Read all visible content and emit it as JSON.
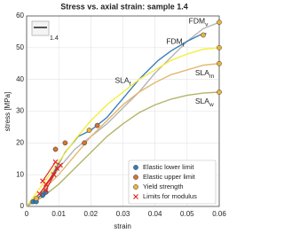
{
  "chart_data": {
    "type": "line",
    "title": "Stress vs. axial strain: sample 1.4",
    "xlabel": "strain",
    "ylabel": "stress [MPa]",
    "inset_label": "1.4",
    "xlim": [
      0,
      0.06
    ],
    "xticks": [
      0,
      0.01,
      0.02,
      0.03,
      0.04,
      0.05,
      0.06
    ],
    "ylim": [
      0,
      60
    ],
    "yticks": [
      0,
      10,
      20,
      30,
      40,
      50,
      60
    ],
    "grid": true,
    "legend": "lower right",
    "series": [
      {
        "name": {
          "text": "FDM",
          "sub": "v"
        },
        "color": "#b5b5b5",
        "x": [
          0,
          0.005,
          0.01,
          0.015,
          0.02,
          0.025,
          0.03,
          0.035,
          0.04,
          0.045,
          0.05,
          0.055,
          0.06
        ],
        "values": [
          0,
          4,
          12,
          18,
          22,
          26,
          31,
          36,
          42,
          47,
          52,
          56,
          58
        ]
      },
      {
        "name": {
          "text": "FDM",
          "sub": "t"
        },
        "color": "#3a7fb8",
        "x": [
          0,
          0.004,
          0.008,
          0.012,
          0.016,
          0.02,
          0.025,
          0.03,
          0.035,
          0.038,
          0.041,
          0.045,
          0.05,
          0.054,
          0.056
        ],
        "values": [
          0,
          3,
          10,
          17,
          22,
          24,
          28,
          34,
          40,
          43,
          46,
          49,
          52,
          54,
          54.5
        ]
      },
      {
        "name": {
          "text": "SLA",
          "sub": "f"
        },
        "color": "#f3ef3c",
        "x": [
          0,
          0.005,
          0.01,
          0.015,
          0.02,
          0.025,
          0.03,
          0.035,
          0.04,
          0.045,
          0.05,
          0.055,
          0.06
        ],
        "values": [
          0,
          7,
          14,
          21,
          27,
          32,
          36,
          40,
          43,
          46,
          48,
          49.5,
          50
        ]
      },
      {
        "name": {
          "text": "SLA",
          "sub": "m"
        },
        "color": "#e2b870",
        "x": [
          0,
          0.005,
          0.01,
          0.015,
          0.02,
          0.025,
          0.03,
          0.035,
          0.04,
          0.045,
          0.05,
          0.055,
          0.06
        ],
        "values": [
          0,
          5,
          10,
          16,
          22,
          27,
          32,
          36,
          39,
          41.5,
          43,
          44.5,
          45
        ]
      },
      {
        "name": {
          "text": "SLA",
          "sub": "w"
        },
        "color": "#b4b46a",
        "x": [
          0,
          0.005,
          0.01,
          0.015,
          0.02,
          0.025,
          0.03,
          0.035,
          0.04,
          0.045,
          0.05,
          0.055,
          0.06
        ],
        "values": [
          0,
          3,
          7,
          12,
          17,
          22,
          26,
          29.5,
          32,
          33.8,
          35,
          35.7,
          36
        ]
      }
    ],
    "points": [
      {
        "name": "Elastic lower limit",
        "color": "#2f7fc1",
        "marker": "o",
        "x": [
          0.002,
          0.003,
          0.005,
          0.006
        ],
        "values": [
          1.5,
          1.5,
          3.5,
          4.5
        ]
      },
      {
        "name": "Elastic upper limit",
        "color": "#d9722f",
        "marker": "o",
        "x": [
          0.009,
          0.012,
          0.018,
          0.022
        ],
        "values": [
          18,
          20,
          20,
          25.5
        ]
      },
      {
        "name": "Yield strength",
        "color": "#eeb535",
        "marker": "o",
        "x": [
          0.003,
          0.0195,
          0.055,
          0.06,
          0.06,
          0.06,
          0.06
        ],
        "values": [
          2.5,
          24,
          54,
          58,
          50,
          45,
          36
        ]
      },
      {
        "name": "Limits for modulus",
        "color": "#e8231f",
        "marker": "x",
        "x": [
          0.004,
          0.0085,
          0.005,
          0.009,
          0.006,
          0.0105,
          0.006,
          0.0095
        ],
        "values": [
          4,
          10,
          8,
          14,
          7,
          13,
          5,
          12
        ]
      }
    ]
  }
}
